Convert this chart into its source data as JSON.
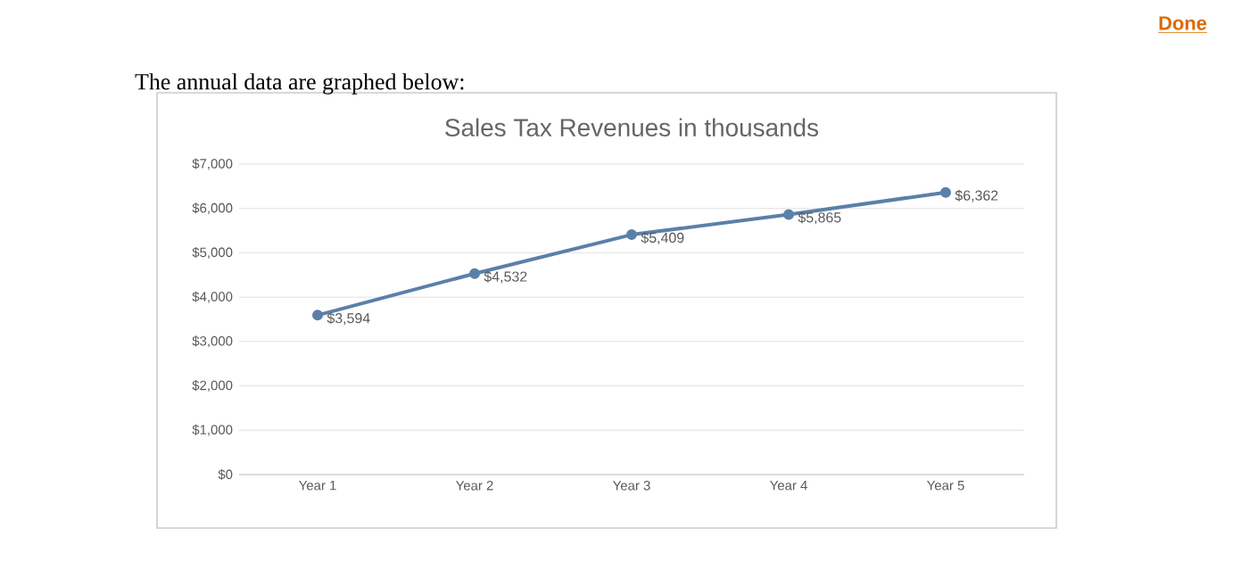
{
  "chart_data": {
    "type": "line",
    "title": "Sales Tax Revenues in thousands",
    "subtitle": "The annual data are graphed below:",
    "annotations": [
      "Done"
    ],
    "categories": [
      "Year 1",
      "Year 2",
      "Year 3",
      "Year 4",
      "Year 5"
    ],
    "values": [
      3594,
      4532,
      5409,
      5865,
      6362
    ],
    "value_labels": [
      "$3,594",
      "$4,532",
      "$5,409",
      "$5,865",
      "$6,362"
    ],
    "color": "#5b80a8",
    "ylim": [
      0,
      7000
    ],
    "yticks": [
      {
        "value": 0,
        "label": "$0"
      },
      {
        "value": 1000,
        "label": "$1,000"
      },
      {
        "value": 2000,
        "label": "$2,000"
      },
      {
        "value": 3000,
        "label": "$3,000"
      },
      {
        "value": 4000,
        "label": "$4,000"
      },
      {
        "value": 5000,
        "label": "$5,000"
      },
      {
        "value": 6000,
        "label": "$6,000"
      },
      {
        "value": 7000,
        "label": "$7,000"
      }
    ],
    "grid": "y",
    "marker": "circle",
    "line_style": "solid"
  }
}
